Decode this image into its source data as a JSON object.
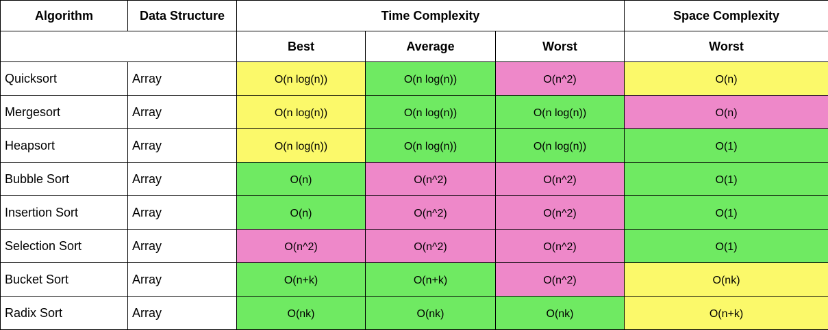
{
  "table": {
    "header": [
      "Algorithm",
      "Data Structure",
      "Time Complexity",
      "Space Complexity"
    ],
    "subheader": [
      "Best",
      "Average",
      "Worst",
      "Worst"
    ],
    "rows": [
      {
        "algorithm": "Quicksort",
        "structure": "Array",
        "cells": [
          {
            "text": "O(n log(n))",
            "color": "#fbf96a"
          },
          {
            "text": "O(n log(n))",
            "color": "#6fea62"
          },
          {
            "text": "O(n^2)",
            "color": "#ee88c9"
          },
          {
            "text": "O(n)",
            "color": "#fbf96a"
          }
        ]
      },
      {
        "algorithm": "Mergesort",
        "structure": "Array",
        "cells": [
          {
            "text": "O(n log(n))",
            "color": "#fbf96a"
          },
          {
            "text": "O(n log(n))",
            "color": "#6fea62"
          },
          {
            "text": "O(n log(n))",
            "color": "#6fea62"
          },
          {
            "text": "O(n)",
            "color": "#ee88c9"
          }
        ]
      },
      {
        "algorithm": "Heapsort",
        "structure": "Array",
        "cells": [
          {
            "text": "O(n log(n))",
            "color": "#fbf96a"
          },
          {
            "text": "O(n log(n))",
            "color": "#6fea62"
          },
          {
            "text": "O(n log(n))",
            "color": "#6fea62"
          },
          {
            "text": "O(1)",
            "color": "#6fea62"
          }
        ]
      },
      {
        "algorithm": "Bubble Sort",
        "structure": "Array",
        "cells": [
          {
            "text": "O(n)",
            "color": "#6fea62"
          },
          {
            "text": "O(n^2)",
            "color": "#ee88c9"
          },
          {
            "text": "O(n^2)",
            "color": "#ee88c9"
          },
          {
            "text": "O(1)",
            "color": "#6fea62"
          }
        ]
      },
      {
        "algorithm": "Insertion Sort",
        "structure": "Array",
        "cells": [
          {
            "text": "O(n)",
            "color": "#6fea62"
          },
          {
            "text": "O(n^2)",
            "color": "#ee88c9"
          },
          {
            "text": "O(n^2)",
            "color": "#ee88c9"
          },
          {
            "text": "O(1)",
            "color": "#6fea62"
          }
        ]
      },
      {
        "algorithm": "Selection Sort",
        "structure": "Array",
        "cells": [
          {
            "text": "O(n^2)",
            "color": "#ee88c9"
          },
          {
            "text": "O(n^2)",
            "color": "#ee88c9"
          },
          {
            "text": "O(n^2)",
            "color": "#ee88c9"
          },
          {
            "text": "O(1)",
            "color": "#6fea62"
          }
        ]
      },
      {
        "algorithm": "Bucket Sort",
        "structure": "Array",
        "cells": [
          {
            "text": "O(n+k)",
            "color": "#6fea62"
          },
          {
            "text": "O(n+k)",
            "color": "#6fea62"
          },
          {
            "text": "O(n^2)",
            "color": "#ee88c9"
          },
          {
            "text": "O(nk)",
            "color": "#fbf96a"
          }
        ]
      },
      {
        "algorithm": "Radix Sort",
        "structure": "Array",
        "cells": [
          {
            "text": "O(nk)",
            "color": "#6fea62"
          },
          {
            "text": "O(nk)",
            "color": "#6fea62"
          },
          {
            "text": "O(nk)",
            "color": "#6fea62"
          },
          {
            "text": "O(n+k)",
            "color": "#fbf96a"
          }
        ]
      }
    ]
  }
}
